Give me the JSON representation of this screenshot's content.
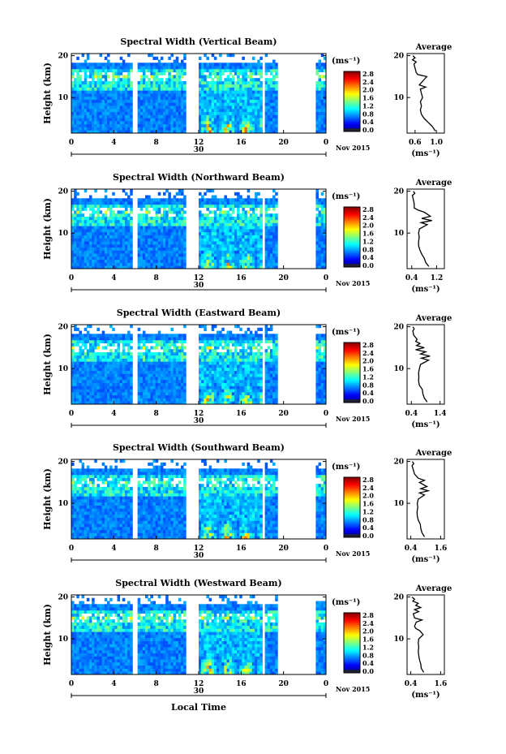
{
  "chart_data": {
    "type": "heatmap",
    "date_label": "Nov 2015",
    "day_label": "30",
    "x_label": "Local Time",
    "y_label": "Height (km)",
    "x_ticks": [
      "0",
      "4",
      "8",
      "12",
      "16",
      "20",
      "0"
    ],
    "xlim": [
      0,
      24
    ],
    "y_ticks": [
      "20",
      "10"
    ],
    "ylim": [
      1.5,
      20.5
    ],
    "data_gaps_hours": [
      [
        5.7,
        6.3
      ],
      [
        10.8,
        11.9
      ],
      [
        18.0,
        18.3
      ],
      [
        19.4,
        23.1
      ]
    ],
    "colorbar": {
      "unit_label": "(ms⁻¹)",
      "tick_labels": [
        "2.8",
        "2.4",
        "2.0",
        "1.6",
        "1.2",
        "0.8",
        "0.4",
        "0.0"
      ],
      "range": [
        0.0,
        3.0
      ]
    },
    "panels": [
      {
        "title": "Spectral Width (Vertical Beam)",
        "tick_labels": [
          "2.8",
          "2.4",
          "2.0",
          "1.6",
          "1.2",
          "0.8",
          "0.4",
          "0.0"
        ],
        "average": {
          "title": "Average",
          "xlabel": "(ms⁻¹)",
          "x_ticks": [
            "0.6",
            "1.0"
          ],
          "xlim": [
            0.45,
            1.15
          ],
          "profile": [
            [
              2.0,
              0.98
            ],
            [
              3.0,
              0.93
            ],
            [
              4.0,
              0.85
            ],
            [
              5.0,
              0.77
            ],
            [
              6.0,
              0.72
            ],
            [
              7.0,
              0.7
            ],
            [
              8.0,
              0.72
            ],
            [
              9.0,
              0.7
            ],
            [
              10.0,
              0.74
            ],
            [
              11.0,
              0.72
            ],
            [
              12.0,
              0.7
            ],
            [
              12.5,
              0.8
            ],
            [
              13.0,
              0.68
            ],
            [
              14.0,
              0.75
            ],
            [
              15.0,
              0.82
            ],
            [
              15.5,
              0.65
            ],
            [
              16.0,
              0.62
            ],
            [
              17.0,
              0.6
            ],
            [
              18.0,
              0.58
            ],
            [
              18.5,
              0.62
            ],
            [
              19.0,
              0.55
            ],
            [
              19.5,
              0.6
            ],
            [
              20.0,
              0.56
            ]
          ]
        }
      },
      {
        "title": "Spectral Width (Northward Beam)",
        "tick_labels": [
          "2.8",
          "2.4",
          "2.0",
          "1.6",
          "1.2",
          "0.8",
          "0.4",
          "0.0"
        ],
        "average": {
          "title": "Average",
          "xlabel": "(ms⁻¹)",
          "x_ticks": [
            "0.4",
            "1.2"
          ],
          "xlim": [
            0.25,
            1.45
          ],
          "profile": [
            [
              2.0,
              0.95
            ],
            [
              3.0,
              0.85
            ],
            [
              4.0,
              0.8
            ],
            [
              5.0,
              0.72
            ],
            [
              6.0,
              0.66
            ],
            [
              7.0,
              0.62
            ],
            [
              8.0,
              0.62
            ],
            [
              9.0,
              0.64
            ],
            [
              10.0,
              0.62
            ],
            [
              11.0,
              0.65
            ],
            [
              12.0,
              0.9
            ],
            [
              12.5,
              0.7
            ],
            [
              13.0,
              1.05
            ],
            [
              13.5,
              0.72
            ],
            [
              14.0,
              1.0
            ],
            [
              15.0,
              0.8
            ],
            [
              15.5,
              0.6
            ],
            [
              16.0,
              0.48
            ],
            [
              17.0,
              0.48
            ],
            [
              18.0,
              0.45
            ],
            [
              19.0,
              0.42
            ],
            [
              19.5,
              0.5
            ],
            [
              20.0,
              0.45
            ]
          ]
        }
      },
      {
        "title": "Spectral Width (Eastward Beam)",
        "tick_labels": [
          "2.8",
          "2.4",
          "2.0",
          "1.6",
          "1.2",
          "0.8",
          "0.4",
          "0.0"
        ],
        "average": {
          "title": "Average",
          "xlabel": "(ms⁻¹)",
          "x_ticks": [
            "0.4",
            "1.4"
          ],
          "xlim": [
            0.25,
            1.55
          ],
          "profile": [
            [
              2.0,
              0.95
            ],
            [
              3.0,
              0.85
            ],
            [
              4.0,
              0.8
            ],
            [
              5.0,
              0.78
            ],
            [
              6.0,
              0.68
            ],
            [
              7.0,
              0.65
            ],
            [
              8.0,
              0.66
            ],
            [
              9.0,
              0.65
            ],
            [
              10.0,
              0.68
            ],
            [
              11.0,
              0.72
            ],
            [
              12.0,
              1.0
            ],
            [
              12.5,
              0.75
            ],
            [
              13.0,
              1.05
            ],
            [
              13.5,
              0.72
            ],
            [
              14.0,
              0.9
            ],
            [
              14.5,
              0.55
            ],
            [
              15.0,
              0.85
            ],
            [
              15.5,
              0.58
            ],
            [
              16.0,
              0.7
            ],
            [
              16.5,
              0.55
            ],
            [
              17.0,
              0.6
            ],
            [
              18.0,
              0.48
            ],
            [
              19.0,
              0.45
            ],
            [
              19.5,
              0.5
            ],
            [
              20.0,
              0.45
            ]
          ]
        }
      },
      {
        "title": "Spectral Width (Southward Beam)",
        "tick_labels": [
          "2.8",
          "2.4",
          "2.0",
          "1.6",
          "1.2",
          "0.8",
          "0.4",
          "0.0"
        ],
        "average": {
          "title": "Average",
          "xlabel": "(ms⁻¹)",
          "x_ticks": [
            "0.4",
            "1.6"
          ],
          "xlim": [
            0.25,
            1.75
          ],
          "profile": [
            [
              2.0,
              0.95
            ],
            [
              3.0,
              0.85
            ],
            [
              4.0,
              0.8
            ],
            [
              5.0,
              0.78
            ],
            [
              6.0,
              0.7
            ],
            [
              7.0,
              0.66
            ],
            [
              8.0,
              0.65
            ],
            [
              9.0,
              0.68
            ],
            [
              10.0,
              0.66
            ],
            [
              11.0,
              0.7
            ],
            [
              12.0,
              0.95
            ],
            [
              12.5,
              0.75
            ],
            [
              13.0,
              1.1
            ],
            [
              13.5,
              0.8
            ],
            [
              14.0,
              1.05
            ],
            [
              15.0,
              0.75
            ],
            [
              15.5,
              0.95
            ],
            [
              16.0,
              0.7
            ],
            [
              17.0,
              0.55
            ],
            [
              18.0,
              0.5
            ],
            [
              19.0,
              0.45
            ],
            [
              19.5,
              0.52
            ],
            [
              20.0,
              0.46
            ]
          ]
        }
      },
      {
        "title": "Spectral Width (Westward Beam)",
        "tick_labels": [
          "2.8",
          "2.4",
          "2.0",
          "1.6",
          "1.2",
          "0.8",
          "0.4",
          "0.0"
        ],
        "average": {
          "title": "Average",
          "xlabel": "(ms⁻¹)",
          "x_ticks": [
            "0.4",
            "1.6"
          ],
          "xlim": [
            0.25,
            1.75
          ],
          "profile": [
            [
              2.0,
              0.92
            ],
            [
              3.0,
              0.82
            ],
            [
              4.0,
              0.8
            ],
            [
              5.0,
              0.75
            ],
            [
              6.0,
              0.72
            ],
            [
              7.0,
              0.7
            ],
            [
              8.0,
              0.72
            ],
            [
              9.0,
              0.7
            ],
            [
              10.0,
              0.72
            ],
            [
              11.0,
              0.9
            ],
            [
              12.0,
              0.75
            ],
            [
              12.5,
              0.6
            ],
            [
              13.0,
              0.55
            ],
            [
              14.0,
              0.62
            ],
            [
              14.5,
              0.85
            ],
            [
              15.0,
              0.55
            ],
            [
              16.0,
              0.5
            ],
            [
              16.5,
              0.72
            ],
            [
              17.0,
              0.55
            ],
            [
              17.5,
              0.8
            ],
            [
              18.0,
              0.6
            ],
            [
              18.5,
              0.7
            ],
            [
              19.0,
              0.48
            ],
            [
              19.5,
              0.55
            ],
            [
              20.0,
              0.45
            ]
          ]
        }
      }
    ]
  }
}
